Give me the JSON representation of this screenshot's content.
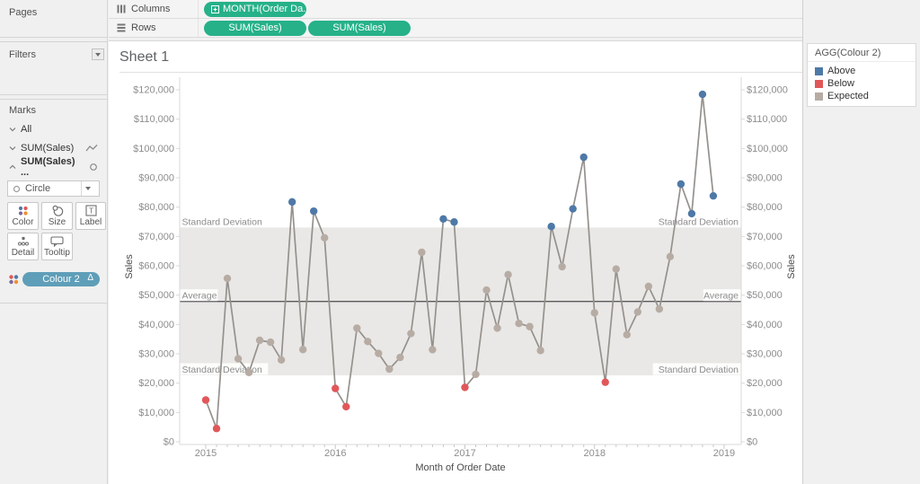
{
  "pages_panel": {
    "title": "Pages"
  },
  "filters_panel": {
    "title": "Filters"
  },
  "marks_panel": {
    "title": "Marks",
    "cards": [
      {
        "label": "All"
      },
      {
        "label": "SUM(Sales)"
      },
      {
        "label": "SUM(Sales) ..."
      }
    ],
    "mark_type": "Circle",
    "buttons": [
      "Color",
      "Size",
      "Label",
      "Detail",
      "Tooltip"
    ],
    "color_pill": {
      "label": "Colour 2",
      "badge": "Δ",
      "color": "#5f9eb8"
    }
  },
  "shelves": {
    "columns_label": "Columns",
    "rows_label": "Rows",
    "pill_color": "#26b189",
    "columns_pills": [
      {
        "text": "MONTH(Order Da.."
      }
    ],
    "rows_pills": [
      {
        "text": "SUM(Sales)"
      },
      {
        "text": "SUM(Sales)"
      }
    ]
  },
  "sheet": {
    "title": "Sheet 1"
  },
  "legend": {
    "title": "AGG(Colour 2)",
    "items": [
      {
        "label": "Above",
        "color": "#4e79a7"
      },
      {
        "label": "Below",
        "color": "#e15759"
      },
      {
        "label": "Expected",
        "color": "#b7aca4"
      }
    ]
  },
  "chart_data": {
    "type": "line",
    "title": "Sheet 1",
    "xlabel": "Month of Order Date",
    "ylabel": "Sales",
    "dual_axis": true,
    "axes": {
      "left_label": "Sales",
      "right_label": "Sales"
    },
    "ylim": [
      0,
      120000
    ],
    "ytick_step": 10000,
    "yticks": [
      "$0",
      "$10,000",
      "$20,000",
      "$30,000",
      "$40,000",
      "$50,000",
      "$60,000",
      "$70,000",
      "$80,000",
      "$90,000",
      "$100,000",
      "$110,000",
      "$120,000"
    ],
    "xticks": [
      "2015",
      "2016",
      "2017",
      "2018",
      "2019"
    ],
    "x_granularity": "month",
    "x_start": "Jan 2015",
    "series_name": "SUM(Sales)",
    "values": [
      14237,
      4520,
      55691,
      28295,
      23648,
      34595,
      33946,
      27909,
      81777,
      31453,
      78629,
      69545,
      18174,
      11951,
      38726,
      34195,
      30131,
      24797,
      28765,
      36898,
      64595,
      31404,
      75973,
      74920,
      18542,
      22978,
      51716,
      38750,
      56988,
      40344,
      39262,
      31115,
      73410,
      59687,
      79411,
      96999,
      43971,
      20301,
      58872,
      36522,
      44261,
      52982,
      45264,
      63121,
      87867,
      77777,
      118448,
      83829
    ],
    "point_categories": [
      "Below",
      "Below",
      "Expected",
      "Expected",
      "Expected",
      "Expected",
      "Expected",
      "Expected",
      "Above",
      "Expected",
      "Above",
      "Expected",
      "Below",
      "Below",
      "Expected",
      "Expected",
      "Expected",
      "Expected",
      "Expected",
      "Expected",
      "Expected",
      "Expected",
      "Above",
      "Above",
      "Below",
      "Expected",
      "Expected",
      "Expected",
      "Expected",
      "Expected",
      "Expected",
      "Expected",
      "Above",
      "Expected",
      "Above",
      "Above",
      "Expected",
      "Below",
      "Expected",
      "Expected",
      "Expected",
      "Expected",
      "Expected",
      "Expected",
      "Above",
      "Above",
      "Above",
      "Above"
    ],
    "reference": {
      "average": 47858,
      "band_low": 22660,
      "band_high": 73056,
      "average_label": "Average",
      "band_label": "Standard Deviation"
    },
    "legend_field": "AGG(Colour 2)",
    "colors": {
      "Above": "#4e79a7",
      "Below": "#e15759",
      "Expected": "#b7aca4",
      "line": "#95918d",
      "band": "#e9e8e6",
      "average_line": "#5a5a5a",
      "axis_text": "#8d8d8d",
      "axis_line": "#d9d9d9"
    }
  }
}
